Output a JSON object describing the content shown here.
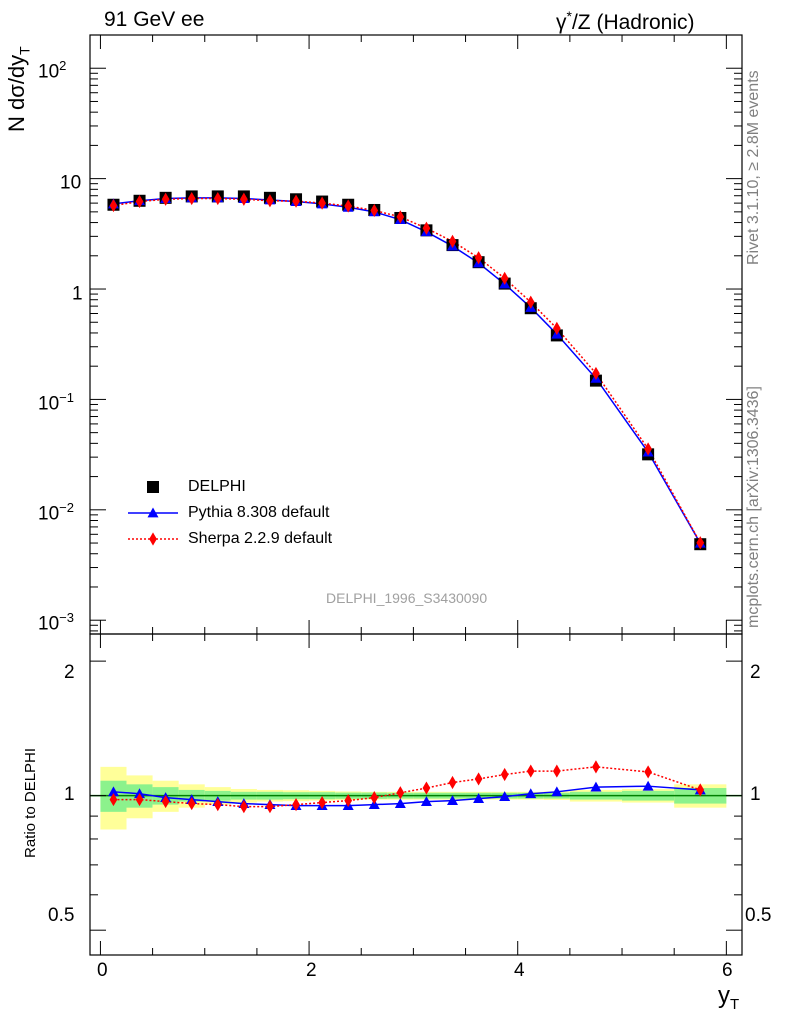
{
  "titles": {
    "left": "91 GeV ee",
    "right_prefix": "γ",
    "right_sup": "*",
    "right_rest": "/Z (Hadronic)"
  },
  "side_text": {
    "rivet": "Rivet 3.1.10, ≥ 2.8M events",
    "mcplots": "mcplots.cern.ch [arXiv:1306.3436]"
  },
  "analysis_tag": "DELPHI_1996_S3430090",
  "axes": {
    "ylabel_main_prefix": "N dσ/dy",
    "ylabel_main_sub": "T",
    "ylabel_ratio": "Ratio to DELPHI",
    "xlabel_main": "y",
    "xlabel_sub": "T",
    "x_ticks": [
      "0",
      "2",
      "4",
      "6"
    ],
    "y_main_ticks": [
      {
        "mant": "10",
        "exp": "2"
      },
      {
        "mant": "10",
        "exp": ""
      },
      {
        "mant": "1",
        "exp": ""
      },
      {
        "mant": "10",
        "exp": "−1"
      },
      {
        "mant": "10",
        "exp": "−2"
      },
      {
        "mant": "10",
        "exp": "−3"
      }
    ],
    "y_ratio_ticks": [
      "2",
      "1",
      "0.5"
    ]
  },
  "colors": {
    "data": "#000000",
    "pythia": "#0000ff",
    "sherpa": "#ff0000",
    "band_inner": "#8cf28c",
    "band_outer": "#ffff99",
    "ratio_line": "#008000"
  },
  "legend": {
    "data": "DELPHI",
    "pythia": "Pythia 8.308 default",
    "sherpa": "Sherpa 2.2.9 default"
  },
  "chart_data": {
    "type": "line",
    "log_y": true,
    "xlim": [
      -0.1,
      6.15
    ],
    "ylim": [
      0.00075,
      200
    ],
    "ratio_ylim": [
      0.44,
      2.3
    ],
    "x": [
      0.125,
      0.375,
      0.625,
      0.875,
      1.125,
      1.375,
      1.625,
      1.875,
      2.125,
      2.375,
      2.625,
      2.875,
      3.125,
      3.375,
      3.625,
      3.875,
      4.125,
      4.375,
      4.75,
      5.25,
      5.75
    ],
    "x_edges": [
      0.0,
      0.25,
      0.5,
      0.75,
      1.0,
      1.25,
      1.5,
      1.75,
      2.0,
      2.25,
      2.5,
      2.75,
      3.0,
      3.25,
      3.5,
      3.75,
      4.0,
      4.25,
      4.5,
      5.0,
      5.5,
      6.0
    ],
    "series": [
      {
        "name": "DELPHI",
        "marker": "square",
        "values": [
          5.8,
          6.3,
          6.7,
          6.9,
          6.9,
          6.9,
          6.7,
          6.5,
          6.2,
          5.8,
          5.2,
          4.4,
          3.4,
          2.5,
          1.75,
          1.12,
          0.67,
          0.38,
          0.148,
          0.0318,
          0.00488
        ]
      },
      {
        "name": "Pythia 8.308 default",
        "marker": "triangle",
        "values": [
          5.9,
          6.3,
          6.6,
          6.7,
          6.7,
          6.6,
          6.4,
          6.2,
          5.9,
          5.5,
          5.0,
          4.25,
          3.3,
          2.45,
          1.72,
          1.11,
          0.68,
          0.39,
          0.155,
          0.0333,
          0.00498
        ]
      },
      {
        "name": "Sherpa 2.2.9 default",
        "marker": "diamond",
        "values": [
          5.7,
          6.2,
          6.5,
          6.6,
          6.6,
          6.5,
          6.3,
          6.25,
          6.0,
          5.65,
          5.15,
          4.5,
          3.55,
          2.7,
          1.92,
          1.25,
          0.76,
          0.44,
          0.172,
          0.0356,
          0.00503
        ]
      }
    ],
    "ratio": {
      "pythia": [
        1.02,
        1.01,
        0.99,
        0.98,
        0.97,
        0.96,
        0.955,
        0.95,
        0.95,
        0.95,
        0.955,
        0.96,
        0.97,
        0.975,
        0.985,
        0.995,
        1.01,
        1.02,
        1.045,
        1.05,
        1.03
      ],
      "sherpa": [
        0.98,
        0.98,
        0.97,
        0.96,
        0.955,
        0.945,
        0.945,
        0.955,
        0.965,
        0.975,
        0.99,
        1.015,
        1.04,
        1.07,
        1.09,
        1.115,
        1.135,
        1.135,
        1.16,
        1.13,
        1.03
      ],
      "band_inner": [
        0.08,
        0.06,
        0.045,
        0.03,
        0.025,
        0.02,
        0.02,
        0.018,
        0.018,
        0.016,
        0.016,
        0.015,
        0.015,
        0.015,
        0.015,
        0.015,
        0.015,
        0.015,
        0.02,
        0.025,
        0.04
      ],
      "band_outer": [
        0.16,
        0.11,
        0.08,
        0.06,
        0.045,
        0.035,
        0.03,
        0.028,
        0.025,
        0.022,
        0.02,
        0.02,
        0.02,
        0.02,
        0.02,
        0.02,
        0.02,
        0.022,
        0.03,
        0.035,
        0.06
      ]
    }
  }
}
